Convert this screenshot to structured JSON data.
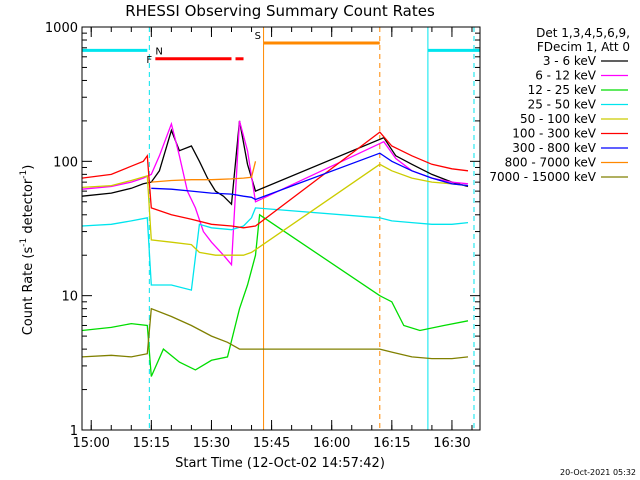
{
  "chart_data": {
    "type": "line",
    "title": "RHESSI Observing Summary Count Rates",
    "xlabel": "Start Time (12-Oct-02 14:57:42)",
    "ylabel_main": "Count Rate (s",
    "ylabel_sup1": "-1",
    "ylabel_mid": " detector",
    "ylabel_sup2": "-1",
    "ylabel_end": ")",
    "yscale": "log",
    "xlim": [
      "14:57:42",
      "16:37:00"
    ],
    "ylim": [
      1,
      1000
    ],
    "x_ticks": [
      {
        "t": "15:00",
        "label": "15:00"
      },
      {
        "t": "15:15",
        "label": "15:15"
      },
      {
        "t": "15:30",
        "label": "15:30"
      },
      {
        "t": "15:45",
        "label": "15:45"
      },
      {
        "t": "16:00",
        "label": "16:00"
      },
      {
        "t": "16:15",
        "label": "16:15"
      },
      {
        "t": "16:30",
        "label": "16:30"
      }
    ],
    "y_ticks": [
      {
        "v": 1,
        "label": "1"
      },
      {
        "v": 10,
        "label": "10"
      },
      {
        "v": 100,
        "label": "100"
      },
      {
        "v": 1000,
        "label": "1000"
      }
    ],
    "legend_header": [
      "Det 1,3,4,5,6,9,",
      "FDecim 1, Att 0"
    ],
    "footer_date": "20-Oct-2021 05:32",
    "series": [
      {
        "name": "3 - 6 keV",
        "color": "#000000",
        "points": [
          [
            "14:57:42",
            55
          ],
          [
            "15:05",
            58
          ],
          [
            "15:10",
            63
          ],
          [
            "15:13",
            68
          ],
          [
            "15:15",
            70
          ],
          [
            "15:17",
            85
          ],
          [
            "15:20",
            170
          ],
          [
            "15:22",
            120
          ],
          [
            "15:25",
            130
          ],
          [
            "15:27",
            100
          ],
          [
            "15:29",
            75
          ],
          [
            "15:31",
            60
          ],
          [
            "15:33",
            55
          ],
          [
            "15:35",
            48
          ],
          [
            "15:37",
            200
          ],
          [
            "15:39",
            95
          ],
          [
            "15:41",
            60
          ],
          [
            "16:13",
            150
          ],
          [
            "16:16",
            110
          ],
          [
            "16:20",
            95
          ],
          [
            "16:25",
            80
          ],
          [
            "16:30",
            70
          ],
          [
            "16:34",
            65
          ]
        ]
      },
      {
        "name": "6 - 12 keV",
        "color": "#ff00ff",
        "points": [
          [
            "14:57:42",
            62
          ],
          [
            "15:05",
            65
          ],
          [
            "15:10",
            70
          ],
          [
            "15:13",
            75
          ],
          [
            "15:15",
            80
          ],
          [
            "15:17",
            110
          ],
          [
            "15:20",
            190
          ],
          [
            "15:22",
            110
          ],
          [
            "15:24",
            60
          ],
          [
            "15:26",
            45
          ],
          [
            "15:28",
            30
          ],
          [
            "15:30",
            25
          ],
          [
            "15:33",
            20
          ],
          [
            "15:35",
            17
          ],
          [
            "15:37",
            200
          ],
          [
            "15:39",
            120
          ],
          [
            "15:41",
            50
          ],
          [
            "16:13",
            140
          ],
          [
            "16:16",
            105
          ],
          [
            "16:20",
            85
          ],
          [
            "16:25",
            75
          ],
          [
            "16:30",
            70
          ],
          [
            "16:34",
            68
          ]
        ]
      },
      {
        "name": "12 - 25 keV",
        "color": "#00dd00",
        "points": [
          [
            "14:57:42",
            5.5
          ],
          [
            "15:05",
            5.8
          ],
          [
            "15:10",
            6.2
          ],
          [
            "15:14",
            6.0
          ],
          [
            "15:15",
            2.5
          ],
          [
            "15:18",
            4.0
          ],
          [
            "15:22",
            3.2
          ],
          [
            "15:26",
            2.8
          ],
          [
            "15:30",
            3.3
          ],
          [
            "15:34",
            3.5
          ],
          [
            "15:37",
            8
          ],
          [
            "15:39",
            12
          ],
          [
            "15:41",
            20
          ],
          [
            "15:42",
            40
          ],
          [
            "16:12",
            10
          ],
          [
            "16:15",
            9
          ],
          [
            "16:18",
            6
          ],
          [
            "16:22",
            5.5
          ],
          [
            "16:28",
            6
          ],
          [
            "16:34",
            6.5
          ]
        ]
      },
      {
        "name": "25 - 50 keV",
        "color": "#00e5ee",
        "points": [
          [
            "14:57:42",
            33
          ],
          [
            "15:05",
            34
          ],
          [
            "15:10",
            36
          ],
          [
            "15:14",
            38
          ],
          [
            "15:15",
            12
          ],
          [
            "15:20",
            12
          ],
          [
            "15:25",
            11
          ],
          [
            "15:27",
            34
          ],
          [
            "15:30",
            32
          ],
          [
            "15:35",
            31
          ],
          [
            "15:38",
            33
          ],
          [
            "15:40",
            38
          ],
          [
            "15:41",
            45
          ],
          [
            "16:12",
            38
          ],
          [
            "16:15",
            36
          ],
          [
            "16:20",
            35
          ],
          [
            "16:25",
            34
          ],
          [
            "16:30",
            34
          ],
          [
            "16:34",
            35
          ]
        ]
      },
      {
        "name": "50 - 100 keV",
        "color": "#cccc00",
        "points": [
          [
            "14:57:42",
            64
          ],
          [
            "15:05",
            66
          ],
          [
            "15:10",
            72
          ],
          [
            "15:14",
            78
          ],
          [
            "15:15",
            26
          ],
          [
            "15:20",
            25
          ],
          [
            "15:25",
            24
          ],
          [
            "15:27",
            21
          ],
          [
            "15:31",
            20
          ],
          [
            "15:35",
            20
          ],
          [
            "15:38",
            20
          ],
          [
            "15:40",
            21
          ],
          [
            "15:41",
            22
          ],
          [
            "16:12",
            95
          ],
          [
            "16:15",
            85
          ],
          [
            "16:20",
            75
          ],
          [
            "16:25",
            70
          ],
          [
            "16:30",
            68
          ],
          [
            "16:34",
            66
          ]
        ]
      },
      {
        "name": "100 - 300 keV",
        "color": "#ff0000",
        "points": [
          [
            "14:57:42",
            75
          ],
          [
            "15:05",
            80
          ],
          [
            "15:10",
            92
          ],
          [
            "15:13",
            100
          ],
          [
            "15:14",
            110
          ],
          [
            "15:15",
            45
          ],
          [
            "15:20",
            40
          ],
          [
            "15:25",
            37
          ],
          [
            "15:30",
            34
          ],
          [
            "15:35",
            33
          ],
          [
            "15:38",
            32
          ],
          [
            "15:41",
            33
          ],
          [
            "16:12",
            165
          ],
          [
            "16:15",
            130
          ],
          [
            "16:20",
            110
          ],
          [
            "16:25",
            95
          ],
          [
            "16:30",
            88
          ],
          [
            "16:34",
            85
          ]
        ]
      },
      {
        "name": "300 - 800 keV",
        "color": "#0000ff",
        "points": [
          [
            "15:15",
            63
          ],
          [
            "15:20",
            62
          ],
          [
            "15:25",
            60
          ],
          [
            "15:30",
            58
          ],
          [
            "15:35",
            57
          ],
          [
            "15:38",
            55
          ],
          [
            "15:40",
            54
          ],
          [
            "15:41",
            52
          ],
          [
            "16:12",
            115
          ],
          [
            "16:15",
            100
          ],
          [
            "16:20",
            85
          ],
          [
            "16:25",
            75
          ],
          [
            "16:30",
            68
          ],
          [
            "16:34",
            66
          ]
        ]
      },
      {
        "name": "800 - 7000 keV",
        "color": "#ff8800",
        "points": [
          [
            "15:15",
            70
          ],
          [
            "15:20",
            72
          ],
          [
            "15:25",
            73
          ],
          [
            "15:30",
            73
          ],
          [
            "15:35",
            74
          ],
          [
            "15:38",
            75
          ],
          [
            "15:40",
            76
          ],
          [
            "15:41",
            100
          ]
        ]
      },
      {
        "name": "7000 - 15000 keV",
        "color": "#808000",
        "points": [
          [
            "14:57:42",
            3.5
          ],
          [
            "15:05",
            3.6
          ],
          [
            "15:10",
            3.5
          ],
          [
            "15:14",
            3.7
          ],
          [
            "15:15",
            8
          ],
          [
            "15:20",
            7
          ],
          [
            "15:25",
            6
          ],
          [
            "15:30",
            5
          ],
          [
            "15:34",
            4.5
          ],
          [
            "15:37",
            4
          ],
          [
            "15:40",
            4
          ],
          [
            "15:41",
            4
          ],
          [
            "16:12",
            4
          ],
          [
            "16:15",
            3.8
          ],
          [
            "16:20",
            3.5
          ],
          [
            "16:25",
            3.4
          ],
          [
            "16:30",
            3.4
          ],
          [
            "16:34",
            3.5
          ]
        ]
      }
    ],
    "flag_bars": [
      {
        "label": "N",
        "color": "#00e5ee",
        "segments": [
          [
            "14:57:42",
            "15:14"
          ],
          [
            "16:24",
            "16:37"
          ]
        ],
        "level": 670
      },
      {
        "label": "F",
        "color": "#ff0000",
        "segments": [
          [
            "15:16",
            "15:35"
          ],
          [
            "15:36",
            "15:38"
          ]
        ],
        "level": 580
      },
      {
        "label": "S",
        "color": "#ff8800",
        "segments": [
          [
            "15:43",
            "16:12"
          ]
        ],
        "level": 760
      }
    ],
    "vlines": [
      {
        "t": "15:14:30",
        "color": "#00e5ee",
        "style": "dashed"
      },
      {
        "t": "15:43:00",
        "color": "#ff8800",
        "style": "solid"
      },
      {
        "t": "16:12:00",
        "color": "#ff8800",
        "style": "dashed"
      },
      {
        "t": "16:24:00",
        "color": "#00e5ee",
        "style": "solid"
      },
      {
        "t": "16:35:30",
        "color": "#00e5ee",
        "style": "dashed"
      }
    ]
  }
}
